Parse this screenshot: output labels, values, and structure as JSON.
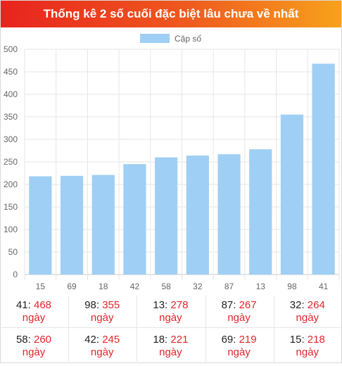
{
  "header": {
    "title": "Thống kê 2 số cuối đặc biệt lâu chưa về nhất"
  },
  "chart_data": {
    "type": "bar",
    "categories": [
      "15",
      "69",
      "18",
      "42",
      "58",
      "32",
      "87",
      "13",
      "98",
      "41"
    ],
    "series": [
      {
        "name": "Cặp số",
        "values": [
          218,
          219,
          221,
          245,
          260,
          264,
          267,
          278,
          355,
          468
        ],
        "color": "#9fcff4"
      }
    ],
    "y_ticks": [
      0,
      50,
      100,
      150,
      200,
      250,
      300,
      350,
      400,
      450,
      500
    ],
    "ylim": [
      0,
      500
    ],
    "grid": true,
    "legend_position": "top-center"
  },
  "stats": {
    "unit": "ngày",
    "items": [
      {
        "num": "41",
        "days": "468"
      },
      {
        "num": "98",
        "days": "355"
      },
      {
        "num": "13",
        "days": "278"
      },
      {
        "num": "87",
        "days": "267"
      },
      {
        "num": "32",
        "days": "264"
      },
      {
        "num": "58",
        "days": "260"
      },
      {
        "num": "42",
        "days": "245"
      },
      {
        "num": "18",
        "days": "221"
      },
      {
        "num": "69",
        "days": "219"
      },
      {
        "num": "15",
        "days": "218"
      }
    ]
  }
}
